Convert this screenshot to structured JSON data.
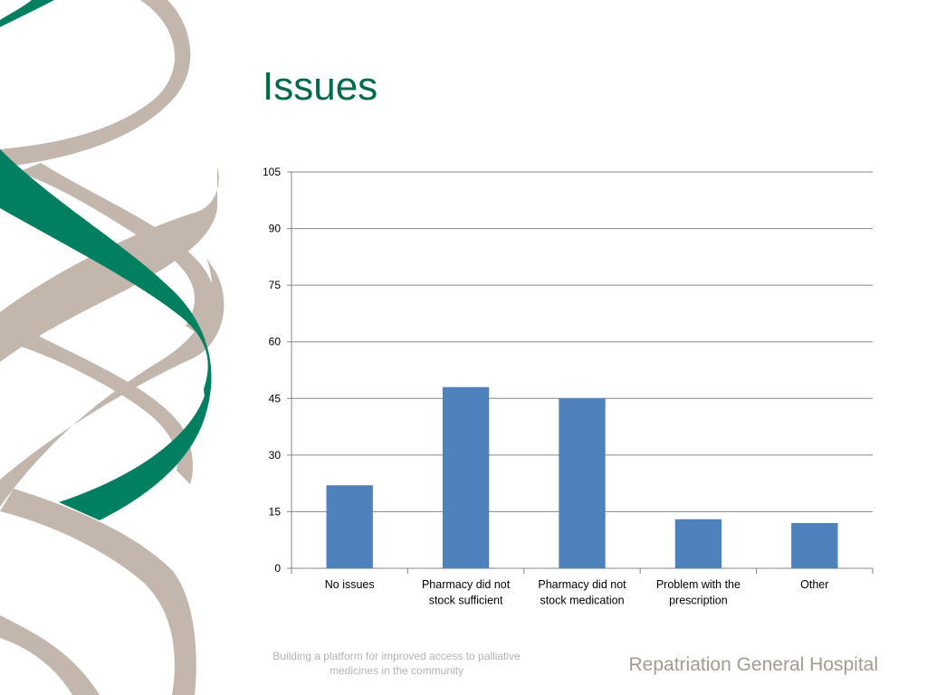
{
  "slide": {
    "title": "Issues",
    "footer_tagline": "Building a platform for improved access to palliative medicines in the community",
    "footer_org": "Repatriation General Hospital"
  },
  "colors": {
    "title": "#006b4a",
    "bar": "#4f81bd",
    "ribbon_green": "#008060",
    "ribbon_taupe": "#c2b6ad",
    "gridline": "#868686"
  },
  "chart_data": {
    "type": "bar",
    "categories": [
      [
        "No issues"
      ],
      [
        "Pharmacy did not",
        "stock sufficient"
      ],
      [
        "Pharmacy did not",
        "stock medication"
      ],
      [
        "Problem with the",
        "prescription"
      ],
      [
        "Other"
      ]
    ],
    "values": [
      22,
      48,
      45,
      13,
      12
    ],
    "ylim": [
      0,
      105
    ],
    "yticks": [
      0,
      15,
      30,
      45,
      60,
      75,
      90,
      105
    ],
    "grid": true,
    "legend": "none",
    "title": "",
    "xlabel": "",
    "ylabel": ""
  }
}
